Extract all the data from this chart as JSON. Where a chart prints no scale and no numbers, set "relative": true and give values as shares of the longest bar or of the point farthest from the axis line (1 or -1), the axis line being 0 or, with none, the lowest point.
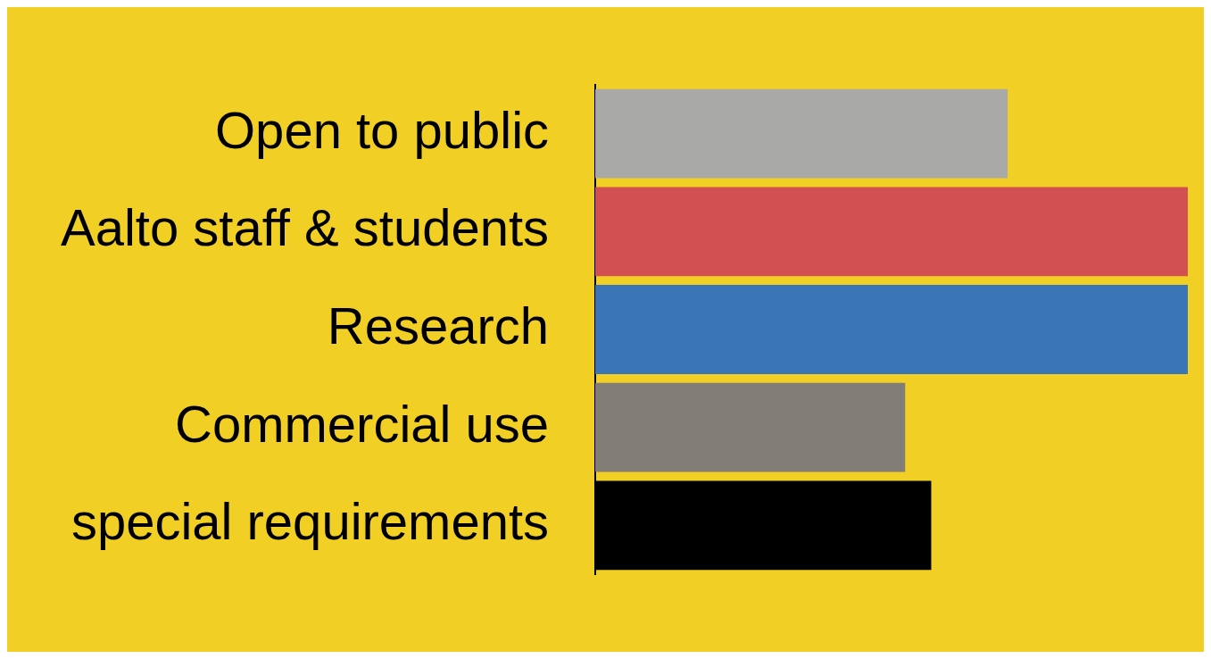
{
  "chart_data": {
    "type": "bar",
    "orientation": "horizontal",
    "relative": true,
    "categories": [
      "Open to public",
      "Aalto staff & students",
      "Research",
      "Commercial use",
      "special requirements"
    ],
    "values": [
      0.696,
      1,
      1,
      0.523,
      0.567
    ],
    "colors": [
      "#a9aaa8",
      "#d24f52",
      "#3a75b6",
      "#827d77",
      "#000000"
    ]
  }
}
